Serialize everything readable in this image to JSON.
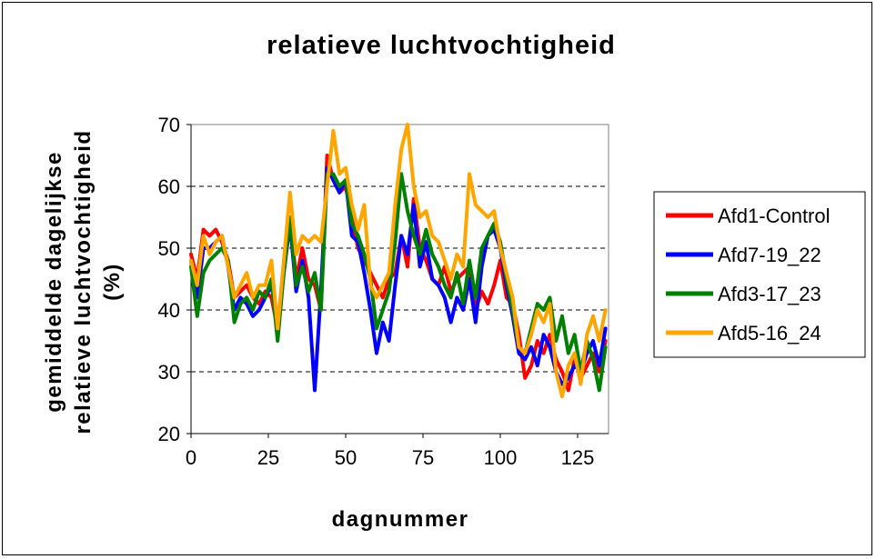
{
  "chart_data": {
    "type": "line",
    "title": "relatieve luchtvochtigheid",
    "xlabel": "dagnummer",
    "ylabel_lines": [
      "gemiddelde dagelijkse",
      "relatieve luchtvochtigheid",
      "(%)"
    ],
    "xlim": [
      0,
      135
    ],
    "ylim": [
      20,
      70
    ],
    "xticks": [
      0,
      25,
      50,
      75,
      100,
      125
    ],
    "yticks": [
      20,
      30,
      40,
      50,
      60,
      70
    ],
    "grid": "horizontal dashed",
    "legend_position": "right",
    "series": [
      {
        "name": "Afd1-Control",
        "color": "#ff0000",
        "x": [
          0,
          2,
          4,
          6,
          8,
          10,
          12,
          14,
          16,
          18,
          20,
          22,
          24,
          26,
          28,
          30,
          32,
          34,
          36,
          38,
          40,
          42,
          44,
          46,
          48,
          50,
          52,
          54,
          56,
          58,
          60,
          62,
          64,
          66,
          68,
          70,
          72,
          74,
          76,
          78,
          80,
          82,
          84,
          86,
          88,
          90,
          92,
          94,
          96,
          98,
          100,
          102,
          104,
          106,
          108,
          110,
          112,
          114,
          116,
          118,
          120,
          122,
          124,
          126,
          128,
          130,
          132,
          134
        ],
        "values": [
          49,
          45,
          53,
          52,
          53,
          51,
          48,
          42,
          43,
          44,
          42,
          41,
          43,
          42,
          37,
          47,
          55,
          45,
          50,
          45,
          44,
          40,
          65,
          61,
          59,
          60,
          55,
          50,
          48,
          46,
          44,
          42,
          45,
          46,
          52,
          47,
          58,
          50,
          48,
          45,
          44,
          47,
          43,
          45,
          46,
          47,
          40,
          43,
          41,
          44,
          48,
          42,
          41,
          36,
          29,
          31,
          35,
          33,
          36,
          32,
          30,
          27,
          32,
          29,
          31,
          33,
          30,
          35
        ]
      },
      {
        "name": "Afd7-19_22",
        "color": "#0000ff",
        "x": [
          0,
          2,
          4,
          6,
          8,
          10,
          12,
          14,
          16,
          18,
          20,
          22,
          24,
          26,
          28,
          30,
          32,
          34,
          36,
          38,
          40,
          42,
          44,
          46,
          48,
          50,
          52,
          54,
          56,
          58,
          60,
          62,
          64,
          66,
          68,
          70,
          72,
          74,
          76,
          78,
          80,
          82,
          84,
          86,
          88,
          90,
          92,
          94,
          96,
          98,
          100,
          102,
          104,
          106,
          108,
          110,
          112,
          114,
          116,
          118,
          120,
          122,
          124,
          126,
          128,
          130,
          132,
          134
        ],
        "values": [
          48,
          42,
          50,
          50,
          51,
          52,
          47,
          40,
          42,
          41,
          39,
          40,
          42,
          44,
          38,
          46,
          54,
          43,
          48,
          42,
          27,
          43,
          63,
          61,
          59,
          61,
          52,
          51,
          46,
          40,
          33,
          38,
          35,
          44,
          52,
          49,
          57,
          47,
          51,
          45,
          44,
          42,
          38,
          42,
          40,
          45,
          38,
          47,
          52,
          53,
          50,
          44,
          39,
          33,
          32,
          34,
          31,
          36,
          34,
          30,
          28,
          29,
          31,
          30,
          33,
          35,
          31,
          37
        ]
      },
      {
        "name": "Afd3-17_23",
        "color": "#008000",
        "x": [
          0,
          2,
          4,
          6,
          8,
          10,
          12,
          14,
          16,
          18,
          20,
          22,
          24,
          26,
          28,
          30,
          32,
          34,
          36,
          38,
          40,
          42,
          44,
          46,
          48,
          50,
          52,
          54,
          56,
          58,
          60,
          62,
          64,
          66,
          68,
          70,
          72,
          74,
          76,
          78,
          80,
          82,
          84,
          86,
          88,
          90,
          92,
          94,
          96,
          98,
          100,
          102,
          104,
          106,
          108,
          110,
          112,
          114,
          116,
          118,
          120,
          122,
          124,
          126,
          128,
          130,
          132,
          134
        ],
        "values": [
          47,
          39,
          46,
          48,
          49,
          50,
          48,
          38,
          41,
          42,
          40,
          43,
          42,
          45,
          35,
          46,
          55,
          44,
          47,
          43,
          46,
          40,
          62,
          62,
          60,
          61,
          54,
          52,
          49,
          45,
          37,
          40,
          43,
          51,
          62,
          56,
          52,
          49,
          53,
          49,
          47,
          44,
          42,
          46,
          41,
          48,
          42,
          50,
          52,
          54,
          51,
          45,
          40,
          34,
          33,
          37,
          41,
          40,
          42,
          35,
          39,
          33,
          36,
          30,
          35,
          32,
          27,
          34
        ]
      },
      {
        "name": "Afd5-16_24",
        "color": "#ffa500",
        "x": [
          0,
          2,
          4,
          6,
          8,
          10,
          12,
          14,
          16,
          18,
          20,
          22,
          24,
          26,
          28,
          30,
          32,
          34,
          36,
          38,
          40,
          42,
          44,
          46,
          48,
          50,
          52,
          54,
          56,
          58,
          60,
          62,
          64,
          66,
          68,
          70,
          72,
          74,
          76,
          78,
          80,
          82,
          84,
          86,
          88,
          90,
          92,
          94,
          96,
          98,
          100,
          102,
          104,
          106,
          108,
          110,
          112,
          114,
          116,
          118,
          120,
          122,
          124,
          126,
          128,
          130,
          132,
          134
        ],
        "values": [
          48,
          44,
          52,
          49,
          51,
          52,
          47,
          42,
          44,
          46,
          42,
          44,
          44,
          48,
          37,
          48,
          59,
          49,
          52,
          51,
          52,
          51,
          60,
          69,
          62,
          63,
          57,
          53,
          57,
          44,
          42,
          44,
          46,
          57,
          66,
          70,
          60,
          55,
          56,
          52,
          51,
          48,
          45,
          49,
          47,
          62,
          57,
          56,
          55,
          56,
          50,
          46,
          42,
          34,
          33,
          36,
          40,
          38,
          41,
          30,
          26,
          31,
          33,
          28,
          36,
          39,
          35,
          40
        ]
      }
    ]
  }
}
